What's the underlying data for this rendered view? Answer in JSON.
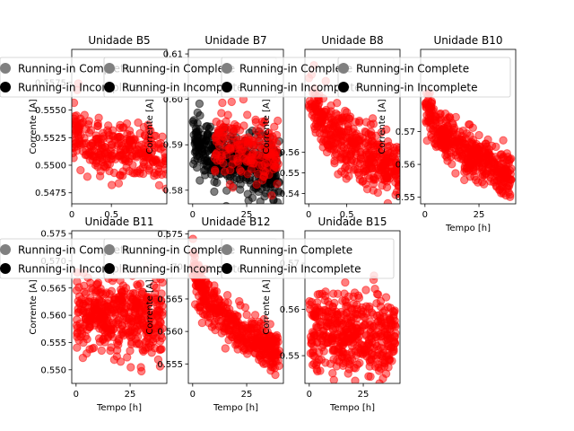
{
  "figure": {
    "panel_count": 7
  },
  "legend_labels": [
    "Running-in Complete",
    "Running-in Incomplete"
  ],
  "colors": {
    "complete_marker": "#808080",
    "incomplete_marker": "#000000",
    "unit_points": "#ff0000",
    "unit_points_alpha": 0.5
  },
  "chart_data": [
    {
      "type": "scatter",
      "title": "Unidade B5",
      "xlabel": "",
      "ylabel": "Corrente [A]",
      "xlim": [
        0,
        1.2
      ],
      "ylim": [
        0.5465,
        0.5605
      ],
      "xticks": [
        0,
        0.5
      ],
      "xtick_labels": [
        "0",
        "0.5"
      ],
      "yticks": [
        0.5475,
        0.55,
        0.5525,
        0.555,
        0.5575
      ],
      "ytick_labels": [
        "0.5475",
        "0.5500",
        "0.5525",
        "0.5550",
        "0.5575"
      ],
      "series": [
        {
          "name": "B5",
          "x_range": [
            0,
            1.2
          ],
          "y_start": 0.5535,
          "y_end": 0.5505,
          "spread": 0.0022,
          "count": 300,
          "seed": 11
        }
      ],
      "legend": [
        "Running-in Complete",
        "Running-in Incomplete"
      ]
    },
    {
      "type": "scatter",
      "title": "Unidade B7",
      "xlabel": "",
      "ylabel": "Corrente [A]",
      "xlim": [
        -2,
        42
      ],
      "ylim": [
        0.577,
        0.611
      ],
      "xticks": [
        0,
        25
      ],
      "xtick_labels": [
        "0",
        "25"
      ],
      "yticks": [
        0.58,
        0.59,
        0.6,
        0.61
      ],
      "ytick_labels": [
        "0.58",
        "0.59",
        "0.60",
        "0.61"
      ],
      "series": [
        {
          "name": "B7 incomplete",
          "color": "black",
          "x_range": [
            0,
            40
          ],
          "y_start": 0.593,
          "y_end": 0.584,
          "spread": 0.005,
          "count": 420,
          "seed": 23
        },
        {
          "name": "B7",
          "color": "red",
          "x_range": [
            10,
            40
          ],
          "y_start": 0.592,
          "y_end": 0.588,
          "spread": 0.006,
          "count": 180,
          "seed": 29
        }
      ],
      "legend": [
        "Running-in Complete",
        "Running-in Incomplete"
      ]
    },
    {
      "type": "scatter",
      "title": "Unidade B8",
      "xlabel": "",
      "ylabel": "Corrente [A]",
      "xlim": [
        -0.05,
        1.2
      ],
      "ylim": [
        0.535,
        0.61
      ],
      "xticks": [
        0,
        0.5
      ],
      "xtick_labels": [
        "0",
        "0.5"
      ],
      "yticks": [
        0.54,
        0.55,
        0.56
      ],
      "ytick_labels": [
        "0.54",
        "0.55",
        "0.56"
      ],
      "series": [
        {
          "name": "B8",
          "x_range": [
            0,
            1.2
          ],
          "y_start": 0.59,
          "y_end": 0.55,
          "spread": 0.012,
          "count": 420,
          "seed": 37
        }
      ],
      "legend": [
        "Running-in Complete",
        "Running-in Incomplete"
      ]
    },
    {
      "type": "scatter",
      "title": "Unidade B10",
      "xlabel": "Tempo [h]",
      "ylabel": "Corrente [A]",
      "xlim": [
        -2,
        42
      ],
      "ylim": [
        0.548,
        0.595
      ],
      "xticks": [
        0,
        25
      ],
      "xtick_labels": [
        "0",
        "25"
      ],
      "yticks": [
        0.55,
        0.56,
        0.57
      ],
      "ytick_labels": [
        "0.55",
        "0.56",
        "0.57"
      ],
      "series": [
        {
          "name": "B10",
          "x_range": [
            0,
            40
          ],
          "y_start": 0.58,
          "y_end": 0.556,
          "spread": 0.006,
          "count": 420,
          "seed": 41
        }
      ],
      "legend": [
        "Running-in Complete",
        "Running-in Incomplete"
      ]
    },
    {
      "type": "scatter",
      "title": "Unidade B11",
      "xlabel": "Tempo [h]",
      "ylabel": "Corrente [A]",
      "xlim": [
        -2,
        42
      ],
      "ylim": [
        0.5475,
        0.5755
      ],
      "xticks": [
        0,
        25
      ],
      "xtick_labels": [
        "0",
        "25"
      ],
      "yticks": [
        0.55,
        0.555,
        0.56,
        0.565,
        0.57,
        0.575
      ],
      "ytick_labels": [
        "0.550",
        "0.555",
        "0.560",
        "0.565",
        "0.570",
        "0.575"
      ],
      "series": [
        {
          "name": "B11",
          "x_range": [
            0,
            40
          ],
          "y_start": 0.5605,
          "y_end": 0.5595,
          "spread": 0.0058,
          "count": 450,
          "seed": 53
        }
      ],
      "legend": [
        "Running-in Complete",
        "Running-in Incomplete"
      ]
    },
    {
      "type": "scatter",
      "title": "Unidade B12",
      "xlabel": "Tempo [h]",
      "ylabel": "Corrente [A]",
      "xlim": [
        -2,
        42
      ],
      "ylim": [
        0.552,
        0.5755
      ],
      "xticks": [
        0,
        25
      ],
      "xtick_labels": [
        "0",
        "25"
      ],
      "yticks": [
        0.555,
        0.56,
        0.565,
        0.57,
        0.575
      ],
      "ytick_labels": [
        "0.555",
        "0.560",
        "0.565",
        "0.570",
        "0.575"
      ],
      "series": [
        {
          "name": "B12",
          "x_range": [
            0,
            40
          ],
          "y_start": 0.571,
          "y_end": 0.5565,
          "spread": 0.0025,
          "count": 420,
          "seed": 67
        }
      ],
      "legend": [
        "Running-in Complete",
        "Running-in Incomplete"
      ]
    },
    {
      "type": "scatter",
      "title": "Unidade B15",
      "xlabel": "Tempo [h]",
      "ylabel": "Corrente [A]",
      "xlim": [
        -2,
        42
      ],
      "ylim": [
        0.544,
        0.577
      ],
      "xticks": [
        0,
        25
      ],
      "xtick_labels": [
        "0",
        "25"
      ],
      "yticks": [
        0.55,
        0.56,
        0.57
      ],
      "ytick_labels": [
        "0.55",
        "0.56",
        "0.57"
      ],
      "series": [
        {
          "name": "B15",
          "x_range": [
            0,
            40
          ],
          "y_start": 0.556,
          "y_end": 0.554,
          "spread": 0.007,
          "count": 450,
          "seed": 79
        }
      ],
      "legend": [
        "Running-in Complete",
        "Running-in Incomplete"
      ]
    }
  ]
}
